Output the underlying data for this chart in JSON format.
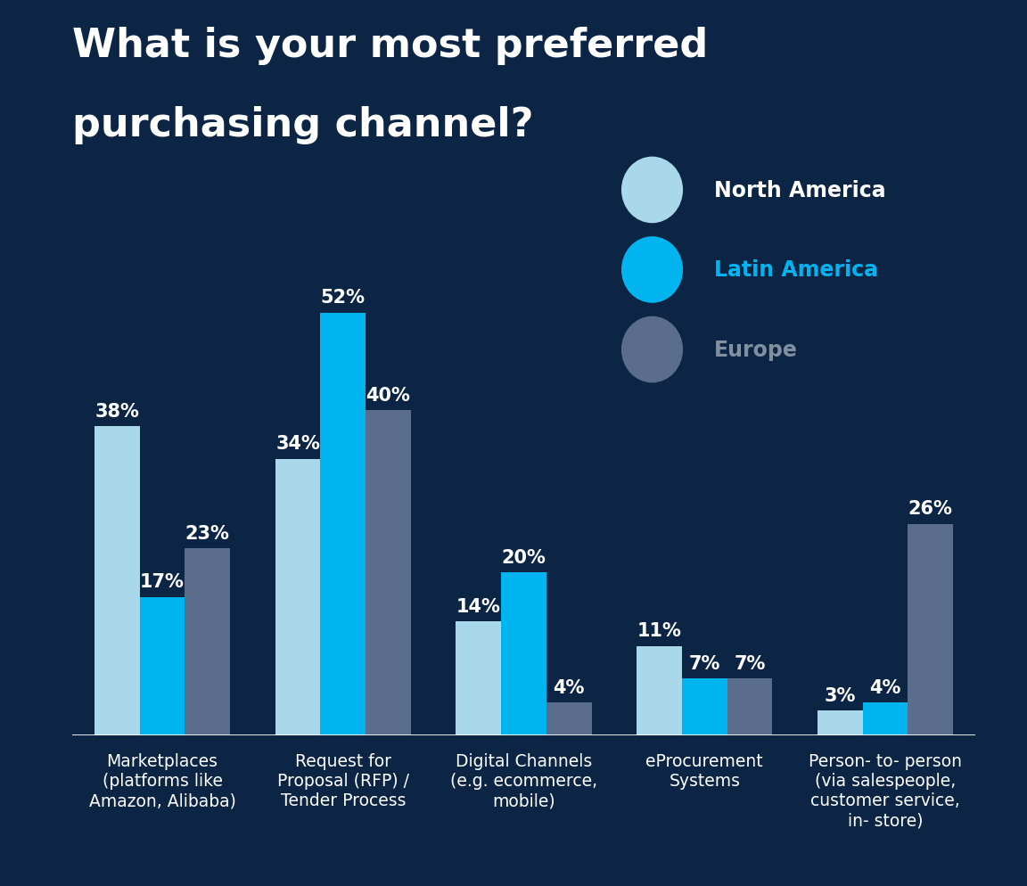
{
  "title_line1": "What is your most preferred",
  "title_line2": "purchasing channel?",
  "background_color": "#0d2545",
  "bar_colors": {
    "north_america": "#a8d8ea",
    "latin_america": "#00b4f0",
    "europe": "#5a6e8c"
  },
  "categories": [
    "Marketplaces\n(platforms like\nAmazon, Alibaba)",
    "Request for\nProposal (RFP) /\nTender Process",
    "Digital Channels\n(e.g. ecommerce,\nmobile)",
    "eProcurement\nSystems",
    "Person- to- person\n(via salespeople,\ncustomer service,\nin- store)"
  ],
  "north_america": [
    38,
    34,
    14,
    11,
    3
  ],
  "latin_america": [
    17,
    52,
    20,
    7,
    4
  ],
  "europe": [
    23,
    40,
    4,
    7,
    26
  ],
  "legend_labels": [
    "North America",
    "Latin America",
    "Europe"
  ],
  "legend_colors": [
    "#a8d8ea",
    "#00b4f0",
    "#5a6e8c"
  ],
  "legend_text_colors": [
    "#ffffff",
    "#00b4f0",
    "#8090a0"
  ],
  "text_color": "#ffffff",
  "ylim": [
    0,
    60
  ],
  "bar_width": 0.25,
  "title_fontsize": 32,
  "label_fontsize": 15,
  "tick_fontsize": 13.5,
  "legend_fontsize": 17
}
